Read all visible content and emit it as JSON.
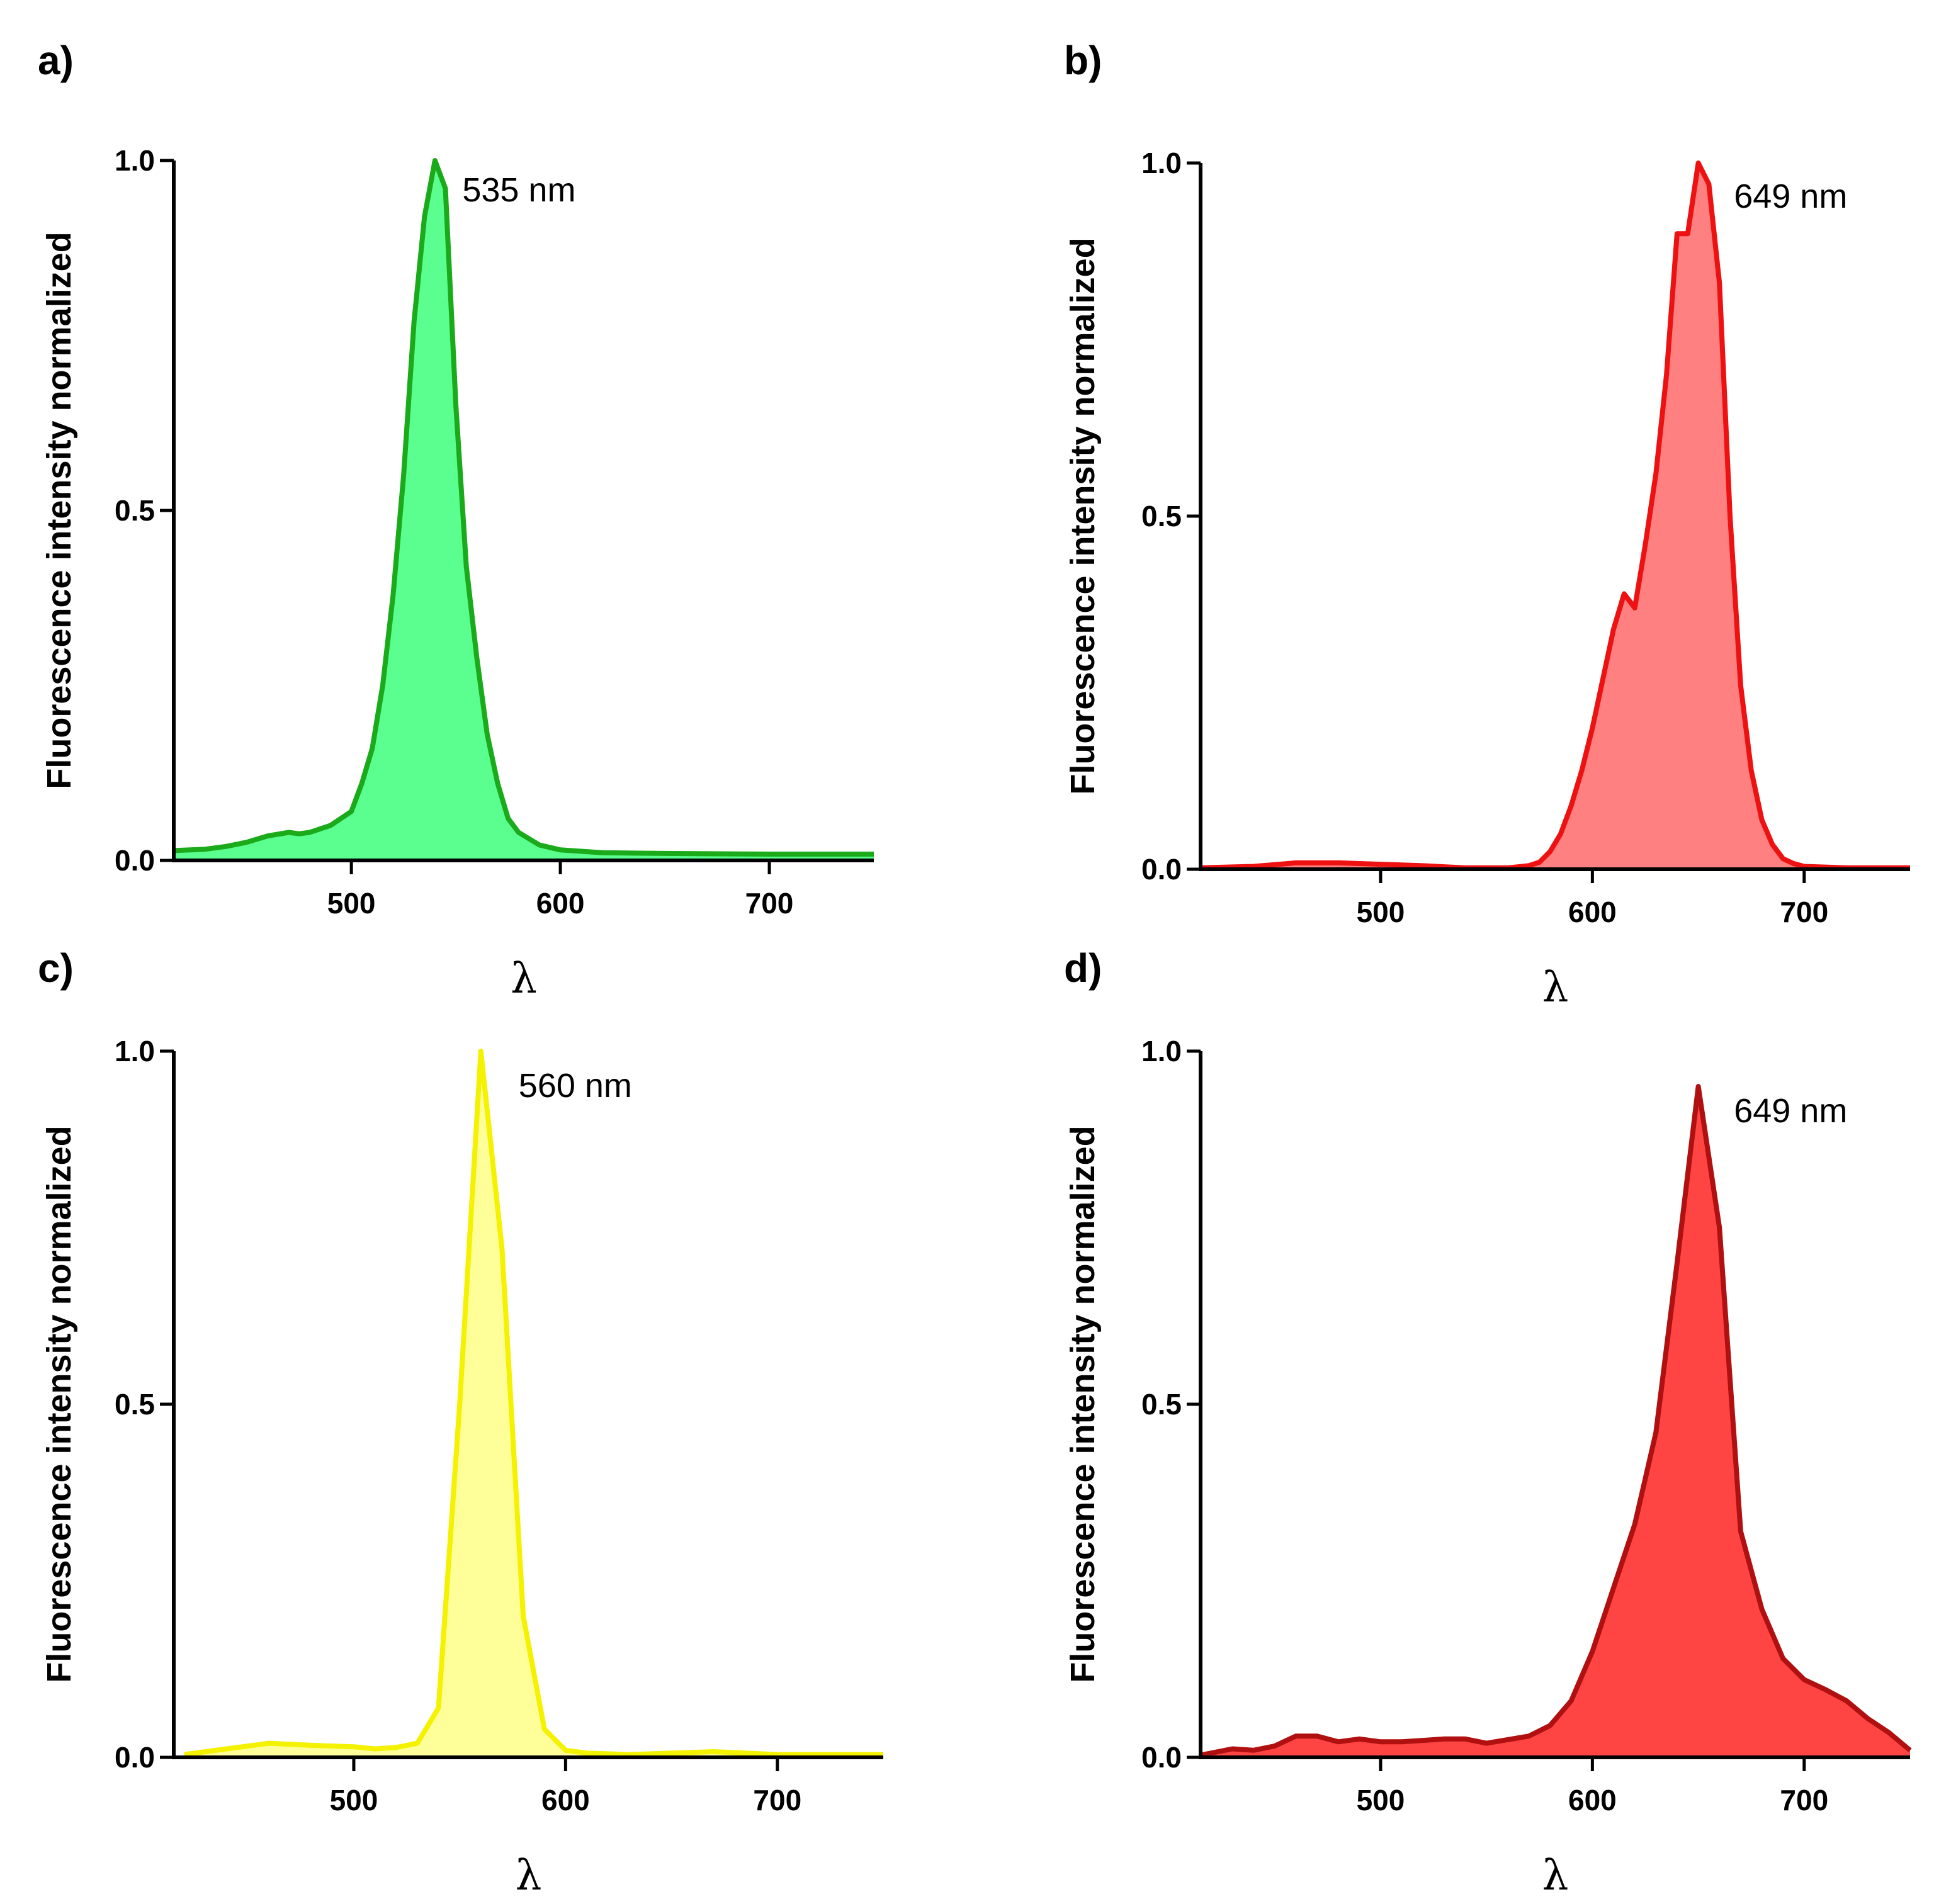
{
  "chart_data": [
    {
      "panel": "a)",
      "type": "area",
      "annotation": "535 nm",
      "ylabel": "Fluorescence intensity normalized",
      "xlabel": "λ",
      "xlim": [
        415,
        750
      ],
      "ylim": [
        0,
        1
      ],
      "xticks": [
        "500",
        "600",
        "700"
      ],
      "yticks": [
        "0.0",
        "0.5",
        "1.0"
      ],
      "line_color": "#1aaa1a",
      "fill_color": "#5aff8f",
      "series": [
        {
          "name": "spectrum",
          "x": [
            415,
            430,
            440,
            450,
            460,
            470,
            475,
            480,
            490,
            500,
            505,
            510,
            515,
            520,
            525,
            530,
            535,
            540,
            545,
            550,
            555,
            560,
            565,
            570,
            575,
            580,
            590,
            600,
            620,
            650,
            700,
            750
          ],
          "y": [
            0.014,
            0.016,
            0.02,
            0.026,
            0.035,
            0.04,
            0.038,
            0.04,
            0.05,
            0.07,
            0.11,
            0.16,
            0.25,
            0.38,
            0.55,
            0.77,
            0.92,
            1.0,
            0.96,
            0.65,
            0.42,
            0.29,
            0.18,
            0.11,
            0.06,
            0.04,
            0.022,
            0.015,
            0.011,
            0.01,
            0.009,
            0.009
          ]
        }
      ]
    },
    {
      "panel": "b)",
      "type": "area",
      "annotation": "649 nm",
      "ylabel": "Fluorescence intensity normalized",
      "xlabel": "λ",
      "xlim": [
        415,
        750
      ],
      "ylim": [
        0,
        1
      ],
      "xticks": [
        "500",
        "600",
        "700"
      ],
      "yticks": [
        "0.0",
        "0.5",
        "1.0"
      ],
      "line_color": "#ee1111",
      "fill_color": "#ff8080",
      "series": [
        {
          "name": "spectrum",
          "x": [
            415,
            440,
            460,
            480,
            500,
            520,
            540,
            560,
            570,
            575,
            580,
            585,
            590,
            595,
            600,
            605,
            610,
            615,
            620,
            625,
            630,
            635,
            640,
            645,
            650,
            655,
            660,
            665,
            670,
            675,
            680,
            685,
            690,
            695,
            700,
            720,
            750
          ],
          "y": [
            0.002,
            0.004,
            0.009,
            0.009,
            0.007,
            0.005,
            0.002,
            0.002,
            0.005,
            0.01,
            0.025,
            0.05,
            0.09,
            0.14,
            0.2,
            0.27,
            0.34,
            0.39,
            0.37,
            0.46,
            0.56,
            0.7,
            0.9,
            0.9,
            1.0,
            0.97,
            0.83,
            0.5,
            0.26,
            0.14,
            0.07,
            0.035,
            0.015,
            0.008,
            0.004,
            0.002,
            0.002
          ]
        }
      ]
    },
    {
      "panel": "c)",
      "type": "area",
      "annotation": "560 nm",
      "ylabel": "Fluorescence intensity normalized",
      "xlabel": "λ",
      "xlim": [
        415,
        750
      ],
      "ylim": [
        0,
        1
      ],
      "xticks": [
        "500",
        "600",
        "700"
      ],
      "yticks": [
        "0.0",
        "0.5",
        "1.0"
      ],
      "line_color": "#f4f200",
      "fill_color": "#ffff99",
      "series": [
        {
          "name": "spectrum",
          "x": [
            420,
            440,
            460,
            480,
            500,
            510,
            520,
            530,
            540,
            550,
            560,
            570,
            580,
            590,
            600,
            610,
            630,
            650,
            670,
            700,
            750
          ],
          "y": [
            0.004,
            0.012,
            0.02,
            0.017,
            0.015,
            0.012,
            0.014,
            0.02,
            0.07,
            0.5,
            1.0,
            0.72,
            0.2,
            0.04,
            0.01,
            0.006,
            0.004,
            0.006,
            0.008,
            0.004,
            0.004
          ]
        }
      ]
    },
    {
      "panel": "d)",
      "type": "area",
      "annotation": "649 nm",
      "ylabel": "Fluorescence intensity normalized",
      "xlabel": "λ",
      "xlim": [
        415,
        750
      ],
      "ylim": [
        0,
        1
      ],
      "xticks": [
        "500",
        "600",
        "700"
      ],
      "yticks": [
        "0.0",
        "0.5",
        "1.0"
      ],
      "line_color": "#b01010",
      "fill_color": "#ff4444",
      "series": [
        {
          "name": "spectrum",
          "x": [
            415,
            430,
            440,
            450,
            460,
            470,
            480,
            490,
            500,
            510,
            520,
            530,
            540,
            550,
            560,
            570,
            580,
            590,
            600,
            610,
            620,
            630,
            640,
            650,
            660,
            670,
            680,
            690,
            700,
            710,
            720,
            730,
            740,
            750
          ],
          "y": [
            0.003,
            0.012,
            0.01,
            0.016,
            0.03,
            0.03,
            0.022,
            0.026,
            0.022,
            0.022,
            0.024,
            0.026,
            0.026,
            0.02,
            0.025,
            0.03,
            0.045,
            0.08,
            0.15,
            0.24,
            0.33,
            0.46,
            0.7,
            0.95,
            0.75,
            0.32,
            0.21,
            0.14,
            0.11,
            0.096,
            0.08,
            0.055,
            0.035,
            0.01
          ]
        }
      ]
    }
  ]
}
